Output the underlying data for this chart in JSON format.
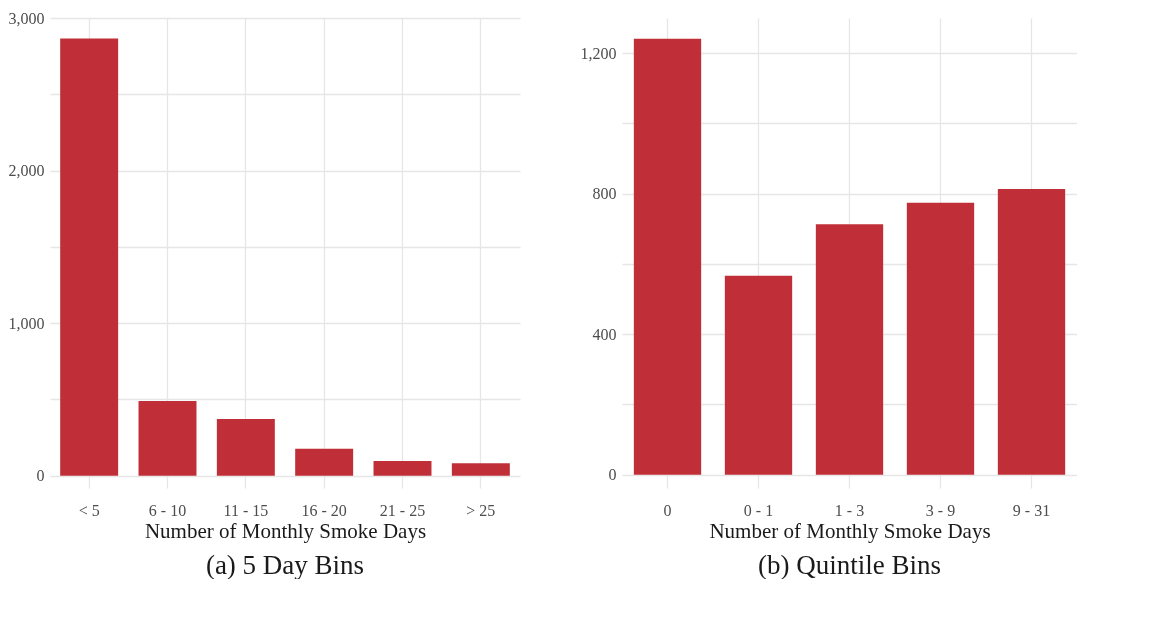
{
  "chart_data": [
    {
      "type": "bar",
      "categories": [
        "< 5",
        "6 - 10",
        "11 - 15",
        "16 - 20",
        "21 - 25",
        "> 25"
      ],
      "values": [
        2865,
        490,
        372,
        178,
        97,
        83
      ],
      "color": "#c02e38",
      "xlabel": "Number of Monthly Smoke Days",
      "ylim": [
        -80,
        3000
      ],
      "yticks": [
        0,
        {
          "value": 500,
          "label": null
        },
        {
          "value": 1000,
          "label": "1,000"
        },
        {
          "value": 1500,
          "label": null
        },
        {
          "value": 2000,
          "label": "2,000"
        },
        {
          "value": 2500,
          "label": null
        },
        {
          "value": 3000,
          "label": "3,000"
        }
      ],
      "grid": true,
      "annotations": [
        "(a) 5 Day Bins"
      ]
    },
    {
      "type": "bar",
      "categories": [
        "0",
        "0 - 1",
        "1 - 3",
        "3 - 9",
        "9 - 31"
      ],
      "values": [
        1241,
        566,
        713,
        774,
        813
      ],
      "color": "#c02e38",
      "xlabel": "Number of Monthly Smoke Days",
      "ylim": [
        -38,
        1300
      ],
      "yticks": [
        0,
        {
          "value": 200,
          "label": null
        },
        400,
        {
          "value": 600,
          "label": null
        },
        800,
        {
          "value": 1000,
          "label": null
        },
        {
          "value": 1200,
          "label": "1,200"
        }
      ],
      "grid": true,
      "annotations": [
        "(b) Quintile Bins"
      ]
    }
  ]
}
